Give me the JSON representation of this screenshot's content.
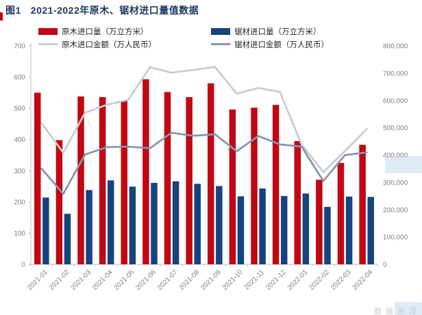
{
  "header": {
    "figure_label": "图1",
    "title": "2021-2022年原木、锯材进口量值数据"
  },
  "legend": [
    {
      "label": "原木进口量（万立方米）",
      "swatch": "bar",
      "color": "#C00712"
    },
    {
      "label": "锯材进口量（万立方米）",
      "swatch": "bar",
      "color": "#17437E"
    },
    {
      "label": "原木进口金额（万人民币）",
      "swatch": "line",
      "color": "#C8CCD2"
    },
    {
      "label": "锯材进口金额（万人民币）",
      "swatch": "line",
      "color": "#8496B0"
    }
  ],
  "watermark": "数据来源",
  "colors": {
    "log_bar": "#C00712",
    "sawn_bar": "#17437E",
    "log_value_line": "#C8CCD2",
    "sawn_value_line": "#8496B0",
    "axis": "#BFBFBF",
    "tick_text": "#7F7F7F",
    "title_text": "#1F3864"
  },
  "chart_data": {
    "type": "bar",
    "subtype": "grouped bars with two overlay lines, dual y-axes",
    "title": "图1 2021-2022年原木、锯材进口量值数据",
    "categories": [
      "2021-01",
      "2021-02",
      "2021-03",
      "2021-04",
      "2021-05",
      "2021-06",
      "2021-07",
      "2021-08",
      "2021-09",
      "2021-10",
      "2021-11",
      "2021-12",
      "2022-01",
      "2022-02",
      "2022-03",
      "2022-04"
    ],
    "series": [
      {
        "name": "原木进口量（万立方米）",
        "type": "bar",
        "axis": "left",
        "color": "#C00712",
        "values": [
          550,
          398,
          538,
          536,
          525,
          593,
          552,
          536,
          580,
          496,
          502,
          511,
          395,
          271,
          325,
          383
        ]
      },
      {
        "name": "锯材进口量（万立方米）",
        "type": "bar",
        "axis": "left",
        "color": "#17437E",
        "values": [
          214,
          162,
          238,
          269,
          249,
          261,
          266,
          258,
          251,
          218,
          243,
          219,
          227,
          184,
          217,
          216
        ]
      },
      {
        "name": "原木进口金额（万人民币）",
        "type": "line",
        "axis": "right",
        "color": "#C8CCD2",
        "values": [
          517000,
          408000,
          555000,
          584000,
          603000,
          722000,
          702000,
          712000,
          723000,
          625000,
          646000,
          631000,
          438000,
          338000,
          415000,
          495000
        ]
      },
      {
        "name": "锯材进口金额（万人民币）",
        "type": "line",
        "axis": "right",
        "color": "#8496B0",
        "values": [
          350000,
          258000,
          402000,
          429000,
          431000,
          425000,
          482000,
          471000,
          476000,
          414000,
          470000,
          439000,
          431000,
          305000,
          400000,
          410000
        ]
      }
    ],
    "left_axis": {
      "min": 0,
      "max": 700,
      "step": 100,
      "ticks": [
        "0",
        "100",
        "200",
        "300",
        "400",
        "500",
        "600",
        "700"
      ]
    },
    "right_axis": {
      "min": 0,
      "max": 800000,
      "step": 100000,
      "ticks": [
        "0",
        "100,000",
        "200,000",
        "300,000",
        "400,000",
        "500,000",
        "600,000",
        "700,000",
        "800,000"
      ]
    },
    "grid": false,
    "legend_position": "top"
  }
}
